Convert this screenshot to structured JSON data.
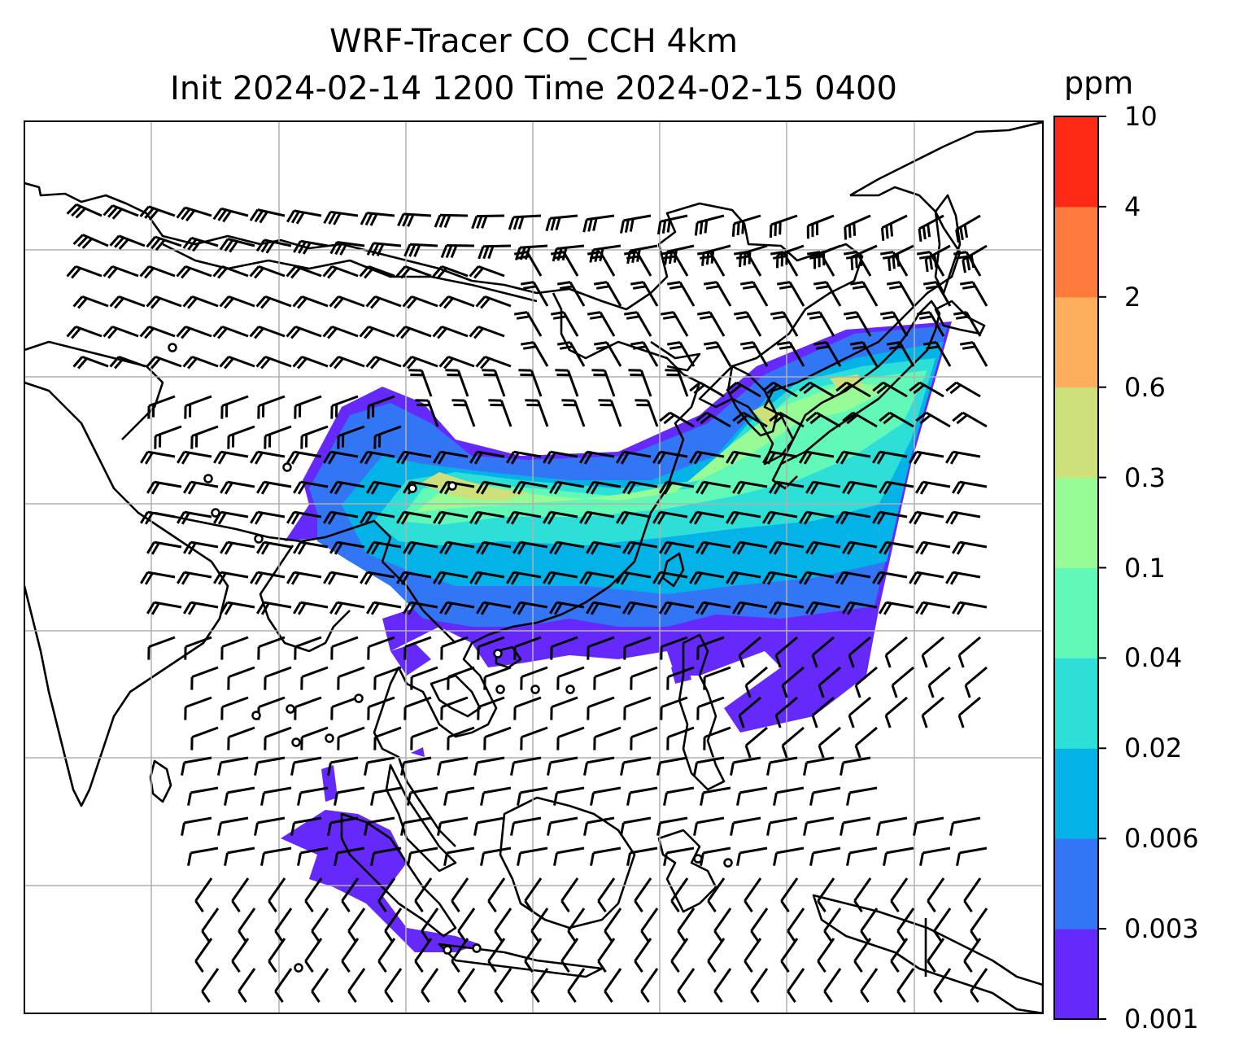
{
  "title": {
    "line1": "WRF-Tracer CO_CCH 4km",
    "line2": "Init 2024-02-14 1200 Time 2024-02-15 0400"
  },
  "colorbar": {
    "units": "ppm",
    "tick_labels": [
      "0.001",
      "0.003",
      "0.006",
      "0.02",
      "0.04",
      "0.1",
      "0.3",
      "0.6",
      "2",
      "4",
      "10"
    ],
    "colors": [
      "#6629fb",
      "#3276f5",
      "#03b3e8",
      "#2ddfd7",
      "#62f8b7",
      "#97fb96",
      "#cde07a",
      "#feaf5d",
      "#fe7a3d",
      "#ff2a16"
    ]
  },
  "legend_colors": {
    "coastline": "#000000",
    "gridline": "#b0b0b0",
    "wind_barb": "#000000"
  }
}
